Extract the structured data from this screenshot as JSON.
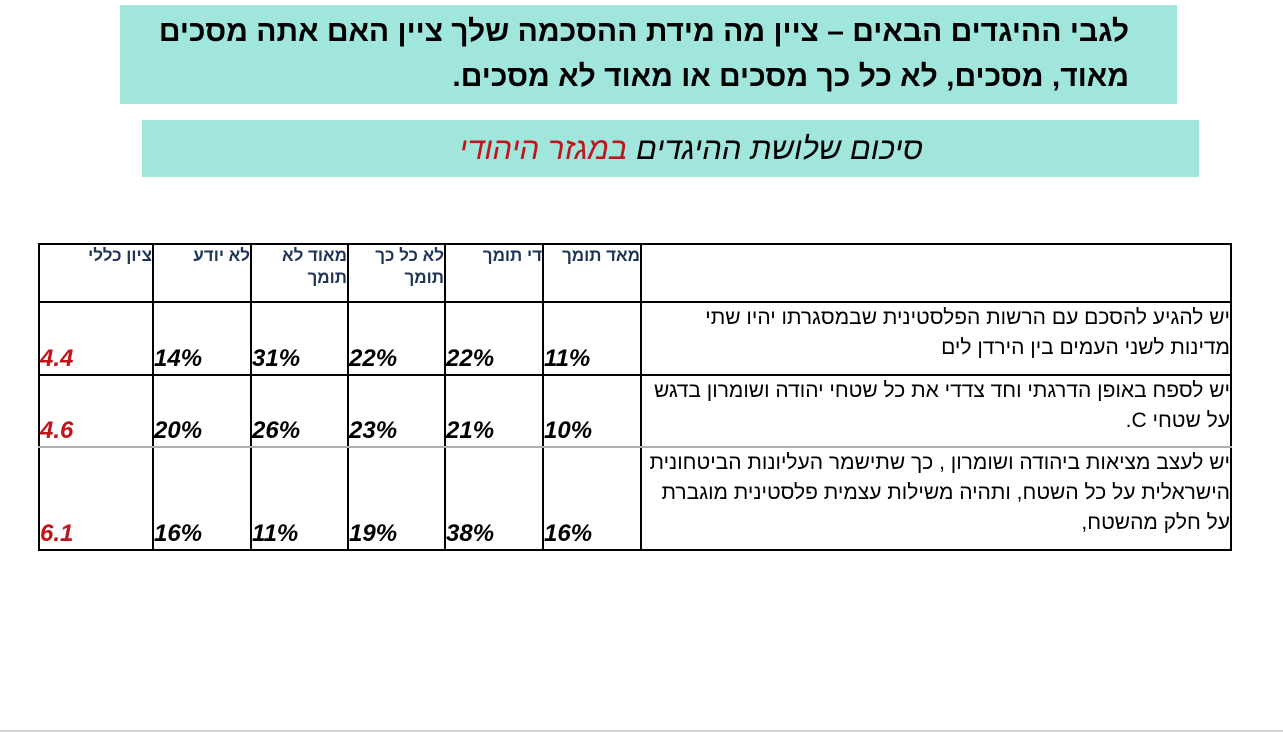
{
  "title": "לגבי ההיגדים הבאים –  ציין מה מידת ההסכמה שלך ציין האם אתה מסכים מאוד, מסכים, לא כל כך מסכים או מאוד לא מסכים.",
  "subtitle": {
    "prefix": "סיכום שלושת ההיגדים ",
    "highlight": "במגזר היהודי",
    "highlight_color": "#c0151a"
  },
  "table": {
    "headers": [
      "",
      "מאד תומך",
      "די תומך",
      "לא כל כך תומך",
      "מאוד לא תומך",
      "לא יודע",
      "ציון כללי"
    ],
    "rows": [
      {
        "statement": "יש להגיע להסכם עם הרשות הפלסטינית שבמסגרתו יהיו שתי מדינות לשני העמים בין הירדן לים",
        "values": [
          "11%",
          "22%",
          "22%",
          "31%",
          "14%"
        ],
        "score": "4.4"
      },
      {
        "statement": "יש לספח באופן הדרגתי וחד צדדי את כל שטחי יהודה ושומרון בדגש על שטחי C.",
        "values": [
          "10%",
          "21%",
          "23%",
          "26%",
          "20%"
        ],
        "score": "4.6"
      },
      {
        "statement": "יש  לעצב מציאות ביהודה ושומרון , כך שתישמר העליונות הביטחונית הישראלית על כל השטח, ותהיה משילות עצמית פלסטינית מוגברת על חלק מהשטח,",
        "values": [
          "16%",
          "38%",
          "19%",
          "11%",
          "16%"
        ],
        "score": "6.1"
      }
    ]
  },
  "colors": {
    "box_background": "#a0e6dd",
    "header_text": "#1f3557",
    "score_text": "#c0151a"
  }
}
